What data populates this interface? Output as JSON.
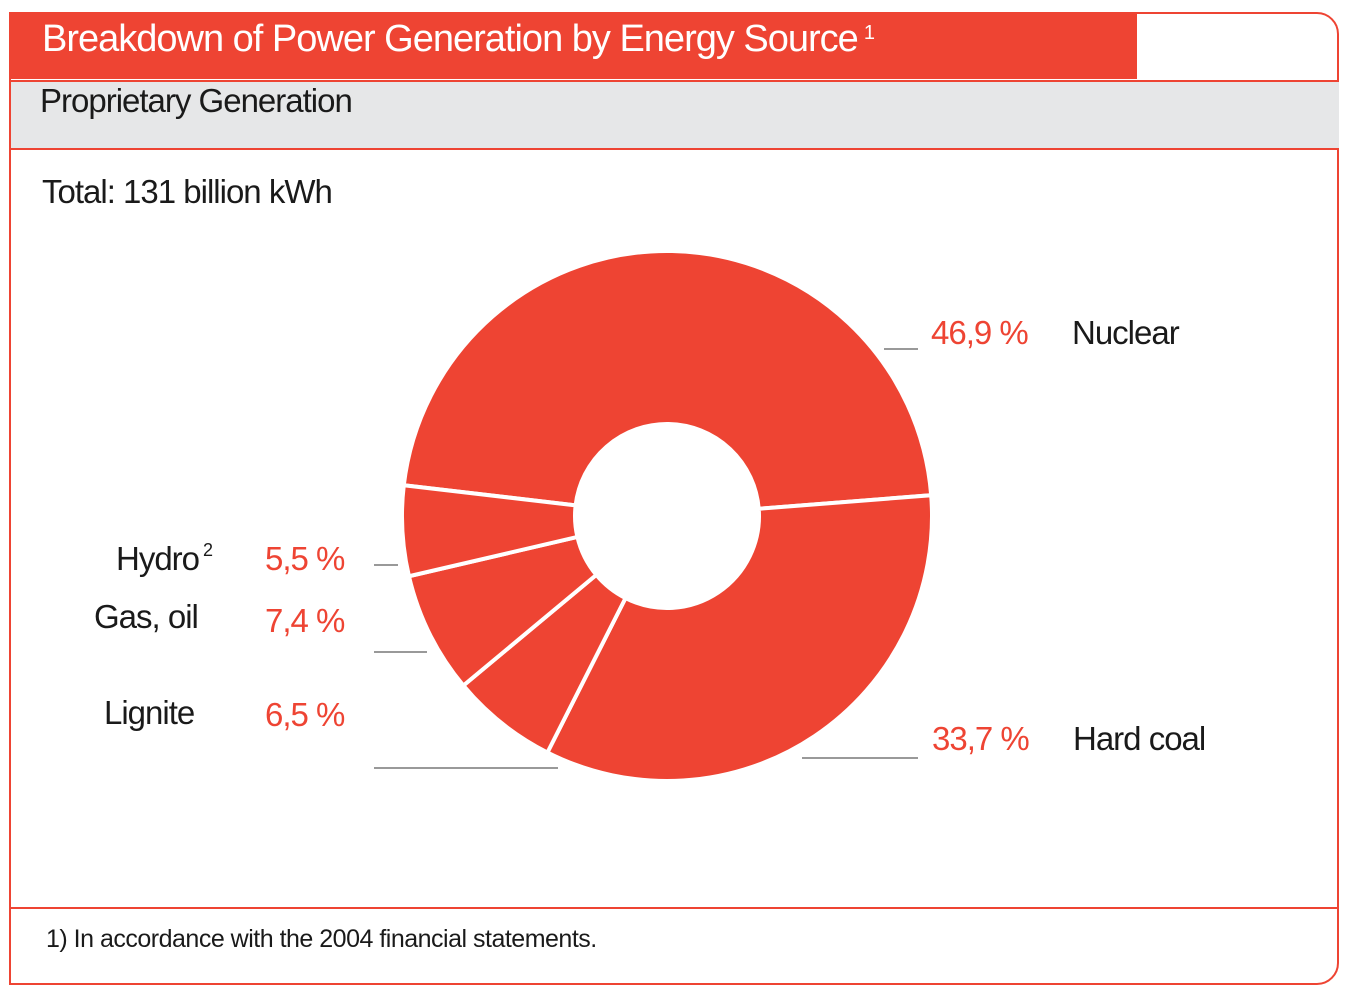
{
  "header": {
    "title": "Breakdown of Power Generation by Energy Source",
    "title_note": "1",
    "subtitle": "Proprietary Generation"
  },
  "footer": {
    "note": "1) In accordance with the 2004 financial statements."
  },
  "colors": {
    "accent": "#EE4433",
    "band": "#E6E7E8"
  },
  "chart_data": {
    "type": "pie",
    "donut": true,
    "title": "Total: 131 billion kWh",
    "categories": [
      "Nuclear",
      "Hard coal",
      "Lignite",
      "Gas, oil",
      "Hydro"
    ],
    "values": [
      46.9,
      33.7,
      6.5,
      7.4,
      5.5
    ],
    "value_labels": [
      "46,9 %",
      "33,7 %",
      "6,5 %",
      "7,4 %",
      "5,5 %"
    ],
    "notes": {
      "Hydro": "2"
    },
    "unit": "%"
  }
}
